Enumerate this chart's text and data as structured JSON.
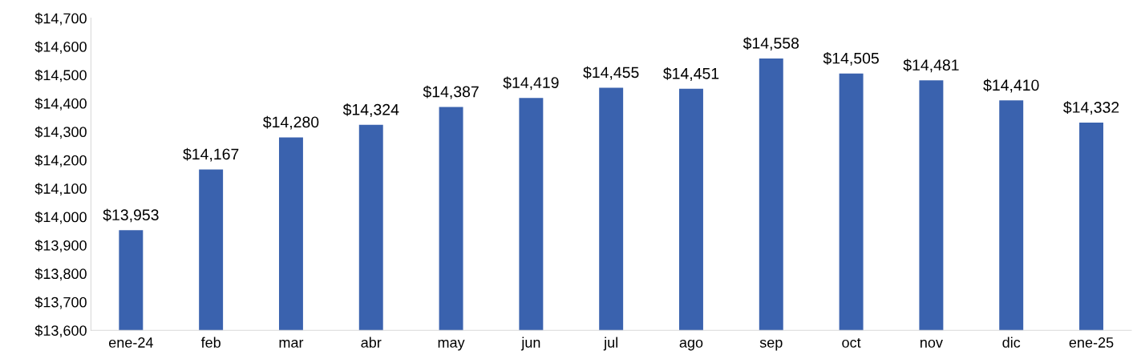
{
  "chart_data": {
    "type": "bar",
    "categories": [
      "ene-24",
      "feb",
      "mar",
      "abr",
      "may",
      "jun",
      "jul",
      "ago",
      "sep",
      "oct",
      "nov",
      "dic",
      "ene-25"
    ],
    "values": [
      13953,
      14167,
      14280,
      14324,
      14387,
      14419,
      14455,
      14451,
      14558,
      14505,
      14481,
      14410,
      14332
    ],
    "value_labels": [
      "$13,953",
      "$14,167",
      "$14,280",
      "$14,324",
      "$14,387",
      "$14,419",
      "$14,455",
      "$14,451",
      "$14,558",
      "$14,505",
      "$14,481",
      "$14,410",
      "$14,332"
    ],
    "color": "#3a62ae",
    "ylim": [
      13600,
      14700
    ],
    "yticks": [
      {
        "value": 13600,
        "label": "$13,600"
      },
      {
        "value": 13700,
        "label": "$13,700"
      },
      {
        "value": 13800,
        "label": "$13,800"
      },
      {
        "value": 13900,
        "label": "$13,900"
      },
      {
        "value": 14000,
        "label": "$14,000"
      },
      {
        "value": 14100,
        "label": "$14,100"
      },
      {
        "value": 14200,
        "label": "$14,200"
      },
      {
        "value": 14300,
        "label": "$14,300"
      },
      {
        "value": 14400,
        "label": "$14,400"
      },
      {
        "value": 14500,
        "label": "$14,500"
      },
      {
        "value": 14600,
        "label": "$14,600"
      },
      {
        "value": 14700,
        "label": "$14,700"
      }
    ],
    "grid": false,
    "legend": false
  }
}
